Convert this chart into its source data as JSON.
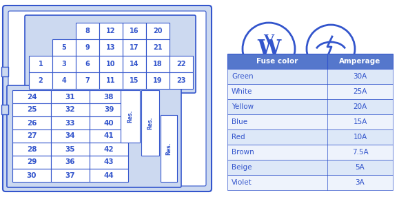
{
  "bg_color": "#ffffff",
  "blue": "#3355cc",
  "light_blue_fill": "#ccd9f0",
  "mid_blue_fill": "#5577cc",
  "table_header_fill": "#5577cc",
  "table_row_fill": "#dde8f8",
  "table_alt_fill": "#eef3fc",
  "fuse_colors": [
    "Green",
    "White",
    "Yellow",
    "Blue",
    "Red",
    "Brown",
    "Beige",
    "Violet"
  ],
  "fuse_amps": [
    "30A",
    "25A",
    "20A",
    "15A",
    "10A",
    "7.5A",
    "5A",
    "3A"
  ],
  "top_section_numbers": [
    [
      "",
      "",
      "8",
      "12",
      "16",
      "20"
    ],
    [
      "",
      "5",
      "9",
      "13",
      "17",
      "21"
    ],
    [
      "1",
      "3",
      "6",
      "10",
      "14",
      "18",
      "22"
    ],
    [
      "2",
      "4",
      "7",
      "11",
      "15",
      "19",
      "23"
    ]
  ],
  "bottom_section_numbers": [
    [
      "24",
      "31",
      "38"
    ],
    [
      "25",
      "32",
      "39"
    ],
    [
      "26",
      "33",
      "40"
    ],
    [
      "27",
      "34",
      "41"
    ],
    [
      "28",
      "35",
      "42"
    ],
    [
      "29",
      "36",
      "43"
    ],
    [
      "30",
      "37",
      "44"
    ]
  ]
}
